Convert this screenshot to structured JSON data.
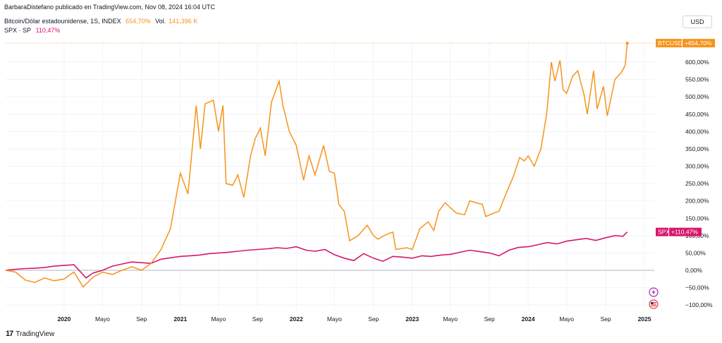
{
  "header": {
    "publisher_text": "BarbaraDistefano publicado en TradingView.com, Nov 08, 2024 16:04 UTC"
  },
  "legend": {
    "btc_name": "Bitcoin/Dólar estadounidense, 1S, INDEX",
    "btc_value": "654,70%",
    "btc_vol_label": "Vol.",
    "btc_vol_value": "141,396 K",
    "spx_name": "SPX · SP",
    "spx_value": "110,47%"
  },
  "currency_button": "USD",
  "footer": {
    "brand": "TradingView",
    "logo_glyph": "17"
  },
  "icons": [
    "lightning-icon",
    "us-flag-icon",
    "tradingview-logo-icon"
  ],
  "colors": {
    "btc": "#f7931a",
    "spx": "#d6186b",
    "zero_line": "#b2b5be",
    "grid": "#f0f3fa"
  },
  "chart_data": {
    "type": "line",
    "y_unit": "%",
    "ylim": [
      -110,
      660
    ],
    "y_ticks": [
      {
        "value": 600,
        "label": "600,00%"
      },
      {
        "value": 550,
        "label": "550,00%"
      },
      {
        "value": 500,
        "label": "500,00%"
      },
      {
        "value": 450,
        "label": "450,00%"
      },
      {
        "value": 400,
        "label": "400,00%"
      },
      {
        "value": 350,
        "label": "350,00%"
      },
      {
        "value": 300,
        "label": "300,00%"
      },
      {
        "value": 250,
        "label": "250,00%"
      },
      {
        "value": 200,
        "label": "200,00%"
      },
      {
        "value": 150,
        "label": "150,00%"
      },
      {
        "value": 100,
        "label": "100,00%"
      },
      {
        "value": 50,
        "label": "50,00%"
      },
      {
        "value": 0,
        "label": "0,00%"
      },
      {
        "value": -50,
        "label": "−50,00%"
      },
      {
        "value": -100,
        "label": "−100,00%"
      }
    ],
    "x_range": [
      "2019-07-01",
      "2025-02-01"
    ],
    "x_ticks": [
      {
        "date": "2020-01-01",
        "label": "2020",
        "bold": true
      },
      {
        "date": "2020-05-01",
        "label": "Mayo",
        "bold": false
      },
      {
        "date": "2020-09-01",
        "label": "Sep",
        "bold": false
      },
      {
        "date": "2021-01-01",
        "label": "2021",
        "bold": true
      },
      {
        "date": "2021-05-01",
        "label": "Mayo",
        "bold": false
      },
      {
        "date": "2021-09-01",
        "label": "Sep",
        "bold": false
      },
      {
        "date": "2022-01-01",
        "label": "2022",
        "bold": true
      },
      {
        "date": "2022-05-01",
        "label": "Mayo",
        "bold": false
      },
      {
        "date": "2022-09-01",
        "label": "Sep",
        "bold": false
      },
      {
        "date": "2023-01-01",
        "label": "2023",
        "bold": true
      },
      {
        "date": "2023-05-01",
        "label": "Mayo",
        "bold": false
      },
      {
        "date": "2023-09-01",
        "label": "Sep",
        "bold": false
      },
      {
        "date": "2024-01-01",
        "label": "2024",
        "bold": true
      },
      {
        "date": "2024-05-01",
        "label": "Mayo",
        "bold": false
      },
      {
        "date": "2024-09-01",
        "label": "Sep",
        "bold": false
      },
      {
        "date": "2025-01-01",
        "label": "2025",
        "bold": true
      }
    ],
    "series": [
      {
        "name": "BTCUSD",
        "badge_label": "BTCUSD",
        "badge_value": "+654,70%",
        "last_value": 654.7,
        "points": [
          [
            "2019-07-01",
            0
          ],
          [
            "2019-08-01",
            -5
          ],
          [
            "2019-09-01",
            -28
          ],
          [
            "2019-10-01",
            -35
          ],
          [
            "2019-11-01",
            -22
          ],
          [
            "2019-12-01",
            -30
          ],
          [
            "2020-01-01",
            -25
          ],
          [
            "2020-02-01",
            -5
          ],
          [
            "2020-03-01",
            -48
          ],
          [
            "2020-04-01",
            -20
          ],
          [
            "2020-05-01",
            -5
          ],
          [
            "2020-06-01",
            -12
          ],
          [
            "2020-07-01",
            0
          ],
          [
            "2020-08-01",
            10
          ],
          [
            "2020-09-01",
            0
          ],
          [
            "2020-10-01",
            20
          ],
          [
            "2020-11-01",
            60
          ],
          [
            "2020-12-01",
            120
          ],
          [
            "2021-01-01",
            280
          ],
          [
            "2021-01-25",
            220
          ],
          [
            "2021-02-20",
            475
          ],
          [
            "2021-03-05",
            350
          ],
          [
            "2021-03-20",
            480
          ],
          [
            "2021-04-15",
            490
          ],
          [
            "2021-05-01",
            400
          ],
          [
            "2021-05-15",
            475
          ],
          [
            "2021-05-25",
            250
          ],
          [
            "2021-06-15",
            245
          ],
          [
            "2021-07-01",
            275
          ],
          [
            "2021-07-20",
            210
          ],
          [
            "2021-08-10",
            330
          ],
          [
            "2021-08-25",
            380
          ],
          [
            "2021-09-10",
            410
          ],
          [
            "2021-09-25",
            330
          ],
          [
            "2021-10-15",
            485
          ],
          [
            "2021-11-08",
            545
          ],
          [
            "2021-11-20",
            475
          ],
          [
            "2021-12-10",
            400
          ],
          [
            "2022-01-01",
            360
          ],
          [
            "2022-01-24",
            260
          ],
          [
            "2022-02-10",
            330
          ],
          [
            "2022-03-01",
            275
          ],
          [
            "2022-03-28",
            360
          ],
          [
            "2022-04-15",
            285
          ],
          [
            "2022-05-01",
            280
          ],
          [
            "2022-05-15",
            190
          ],
          [
            "2022-06-01",
            170
          ],
          [
            "2022-06-18",
            85
          ],
          [
            "2022-07-15",
            100
          ],
          [
            "2022-08-12",
            130
          ],
          [
            "2022-09-01",
            100
          ],
          [
            "2022-09-15",
            90
          ],
          [
            "2022-10-15",
            105
          ],
          [
            "2022-11-01",
            110
          ],
          [
            "2022-11-10",
            60
          ],
          [
            "2022-12-15",
            65
          ],
          [
            "2023-01-01",
            60
          ],
          [
            "2023-01-25",
            120
          ],
          [
            "2023-02-20",
            140
          ],
          [
            "2023-03-10",
            115
          ],
          [
            "2023-03-25",
            170
          ],
          [
            "2023-04-15",
            195
          ],
          [
            "2023-05-01",
            180
          ],
          [
            "2023-05-20",
            165
          ],
          [
            "2023-06-15",
            160
          ],
          [
            "2023-07-01",
            200
          ],
          [
            "2023-07-20",
            195
          ],
          [
            "2023-08-10",
            190
          ],
          [
            "2023-08-20",
            155
          ],
          [
            "2023-09-15",
            165
          ],
          [
            "2023-10-01",
            170
          ],
          [
            "2023-10-25",
            225
          ],
          [
            "2023-11-15",
            270
          ],
          [
            "2023-12-05",
            325
          ],
          [
            "2023-12-20",
            315
          ],
          [
            "2024-01-01",
            330
          ],
          [
            "2024-01-20",
            300
          ],
          [
            "2024-02-10",
            350
          ],
          [
            "2024-02-28",
            450
          ],
          [
            "2024-03-14",
            600
          ],
          [
            "2024-03-25",
            545
          ],
          [
            "2024-04-10",
            605
          ],
          [
            "2024-04-20",
            520
          ],
          [
            "2024-05-01",
            510
          ],
          [
            "2024-05-20",
            560
          ],
          [
            "2024-06-05",
            575
          ],
          [
            "2024-06-25",
            505
          ],
          [
            "2024-07-05",
            450
          ],
          [
            "2024-07-25",
            575
          ],
          [
            "2024-08-05",
            465
          ],
          [
            "2024-08-25",
            530
          ],
          [
            "2024-09-06",
            445
          ],
          [
            "2024-09-30",
            550
          ],
          [
            "2024-10-20",
            570
          ],
          [
            "2024-11-01",
            590
          ],
          [
            "2024-11-08",
            654.7
          ]
        ]
      },
      {
        "name": "SPX",
        "badge_label": "SPX",
        "badge_value": "+110,47%",
        "last_value": 110.47,
        "points": [
          [
            "2019-07-01",
            0
          ],
          [
            "2019-08-01",
            3
          ],
          [
            "2019-09-01",
            5
          ],
          [
            "2019-10-01",
            6
          ],
          [
            "2019-11-01",
            8
          ],
          [
            "2019-12-01",
            12
          ],
          [
            "2020-01-01",
            14
          ],
          [
            "2020-02-01",
            16
          ],
          [
            "2020-03-10",
            -22
          ],
          [
            "2020-04-01",
            -8
          ],
          [
            "2020-05-01",
            0
          ],
          [
            "2020-06-01",
            12
          ],
          [
            "2020-07-01",
            18
          ],
          [
            "2020-08-01",
            24
          ],
          [
            "2020-09-01",
            22
          ],
          [
            "2020-10-01",
            20
          ],
          [
            "2020-11-01",
            32
          ],
          [
            "2020-12-01",
            36
          ],
          [
            "2021-01-01",
            40
          ],
          [
            "2021-02-01",
            42
          ],
          [
            "2021-03-01",
            44
          ],
          [
            "2021-04-01",
            48
          ],
          [
            "2021-05-01",
            50
          ],
          [
            "2021-06-01",
            52
          ],
          [
            "2021-07-01",
            55
          ],
          [
            "2021-08-01",
            58
          ],
          [
            "2021-09-01",
            60
          ],
          [
            "2021-10-01",
            62
          ],
          [
            "2021-11-01",
            65
          ],
          [
            "2021-12-01",
            63
          ],
          [
            "2022-01-01",
            68
          ],
          [
            "2022-02-01",
            58
          ],
          [
            "2022-03-01",
            55
          ],
          [
            "2022-04-01",
            60
          ],
          [
            "2022-05-01",
            45
          ],
          [
            "2022-06-01",
            35
          ],
          [
            "2022-07-01",
            28
          ],
          [
            "2022-08-01",
            48
          ],
          [
            "2022-09-01",
            35
          ],
          [
            "2022-10-01",
            26
          ],
          [
            "2022-11-01",
            40
          ],
          [
            "2022-12-01",
            38
          ],
          [
            "2023-01-01",
            35
          ],
          [
            "2023-02-01",
            42
          ],
          [
            "2023-03-01",
            40
          ],
          [
            "2023-04-01",
            44
          ],
          [
            "2023-05-01",
            46
          ],
          [
            "2023-06-01",
            52
          ],
          [
            "2023-07-01",
            58
          ],
          [
            "2023-08-01",
            54
          ],
          [
            "2023-09-01",
            50
          ],
          [
            "2023-10-01",
            42
          ],
          [
            "2023-11-01",
            58
          ],
          [
            "2023-12-01",
            66
          ],
          [
            "2024-01-01",
            68
          ],
          [
            "2024-02-01",
            74
          ],
          [
            "2024-03-01",
            80
          ],
          [
            "2024-04-01",
            76
          ],
          [
            "2024-05-01",
            84
          ],
          [
            "2024-06-01",
            88
          ],
          [
            "2024-07-01",
            92
          ],
          [
            "2024-08-01",
            86
          ],
          [
            "2024-09-01",
            94
          ],
          [
            "2024-10-01",
            100
          ],
          [
            "2024-10-25",
            98
          ],
          [
            "2024-11-08",
            110.47
          ]
        ]
      }
    ]
  }
}
